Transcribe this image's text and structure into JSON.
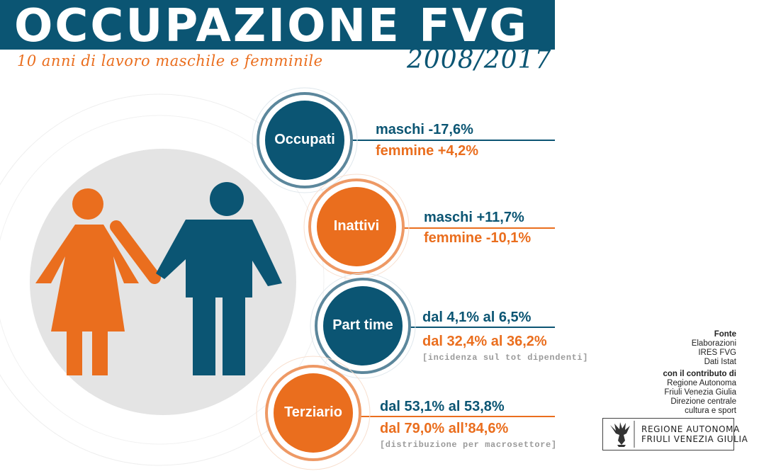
{
  "header": {
    "title": "OCCUPAZIONE FVG",
    "subtitle": "10 anni di lavoro maschile e femminile",
    "years": "2008/2017"
  },
  "colors": {
    "navy": "#0b5573",
    "orange": "#ea6e1e",
    "grey_disc": "#e4e4e4",
    "note_grey": "#9a9a9a"
  },
  "icons": [
    "woman-figure-icon",
    "man-figure-icon",
    "eagle-logo-icon"
  ],
  "indicators": [
    {
      "label": "Occupati",
      "male": "maschi -17,6%",
      "female": "femmine +4,2%"
    },
    {
      "label": "Inattivi",
      "male": "maschi +11,7%",
      "female": "femmine -10,1%"
    },
    {
      "label": "Part time",
      "male": "dal 4,1% al 6,5%",
      "female": "dal 32,4% al 36,2%",
      "note": "[incidenza sul tot dipendenti]"
    },
    {
      "label": "Terziario",
      "male": "dal 53,1% al 53,8%",
      "female": "dal 79,0% all’84,6%",
      "note": "[distribuzione per macrosettore]"
    }
  ],
  "credits": {
    "fonte_title": "Fonte",
    "fonte_lines": [
      "Elaborazioni",
      "IRES FVG",
      "Dati Istat"
    ],
    "contributo_title": "con il contributo di",
    "contributo_lines": [
      "Regione Autonoma",
      "Friuli Venezia Giulia",
      "Direzione centrale",
      "cultura e sport"
    ]
  },
  "logo": {
    "line1": "REGIONE AUTONOMA",
    "line2": "FRIULI VENEZIA GIULIA"
  }
}
